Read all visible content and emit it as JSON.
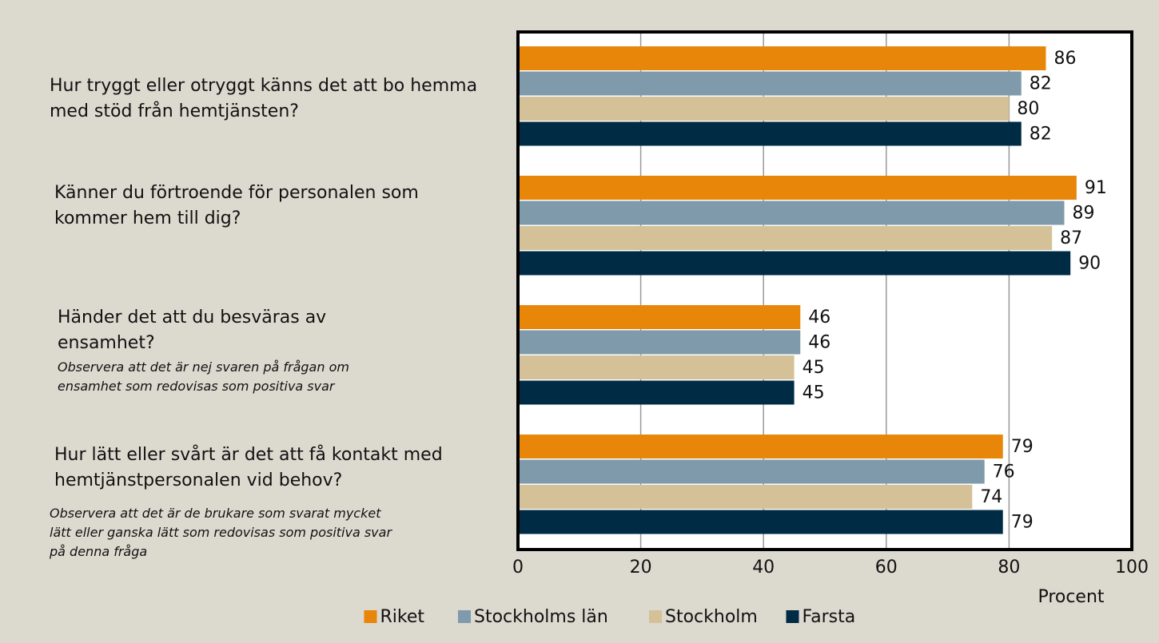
{
  "chart_data": {
    "type": "bar",
    "orientation": "horizontal",
    "categories": [
      "Hur tryggt eller otryggt känns det att bo hemma med stöd från hemtjänsten?",
      "Känner du förtroende för personalen som kommer hem till dig?",
      "Händer det att du besväras av ensamhet?",
      "Hur lätt eller svårt är det att få kontakt med hemtjänstpersonalen vid behov?"
    ],
    "annotations": [
      [
        "Observera att det är nej svaren på frågan om",
        "ensamhet som redovisas som positiva svar"
      ],
      [
        "Observera att det är de brukare som svarat mycket",
        "lätt eller ganska lätt som redovisas som positiva svar",
        "på denna fråga"
      ]
    ],
    "series": [
      {
        "name": "Riket",
        "color": "#e8860a",
        "values": [
          86,
          91,
          46,
          79
        ]
      },
      {
        "name": "Stockholms län",
        "color": "#7f9aab",
        "values": [
          82,
          89,
          46,
          76
        ]
      },
      {
        "name": "Stockholm",
        "color": "#d4c197",
        "values": [
          80,
          87,
          45,
          74
        ]
      },
      {
        "name": "Farsta",
        "color": "#002b45",
        "values": [
          82,
          90,
          45,
          79
        ]
      }
    ],
    "xlabel": "Procent",
    "xlim": [
      0,
      100
    ],
    "xticks": [
      0,
      20,
      40,
      60,
      80,
      100
    ],
    "grid": true,
    "legend": "bottom"
  }
}
